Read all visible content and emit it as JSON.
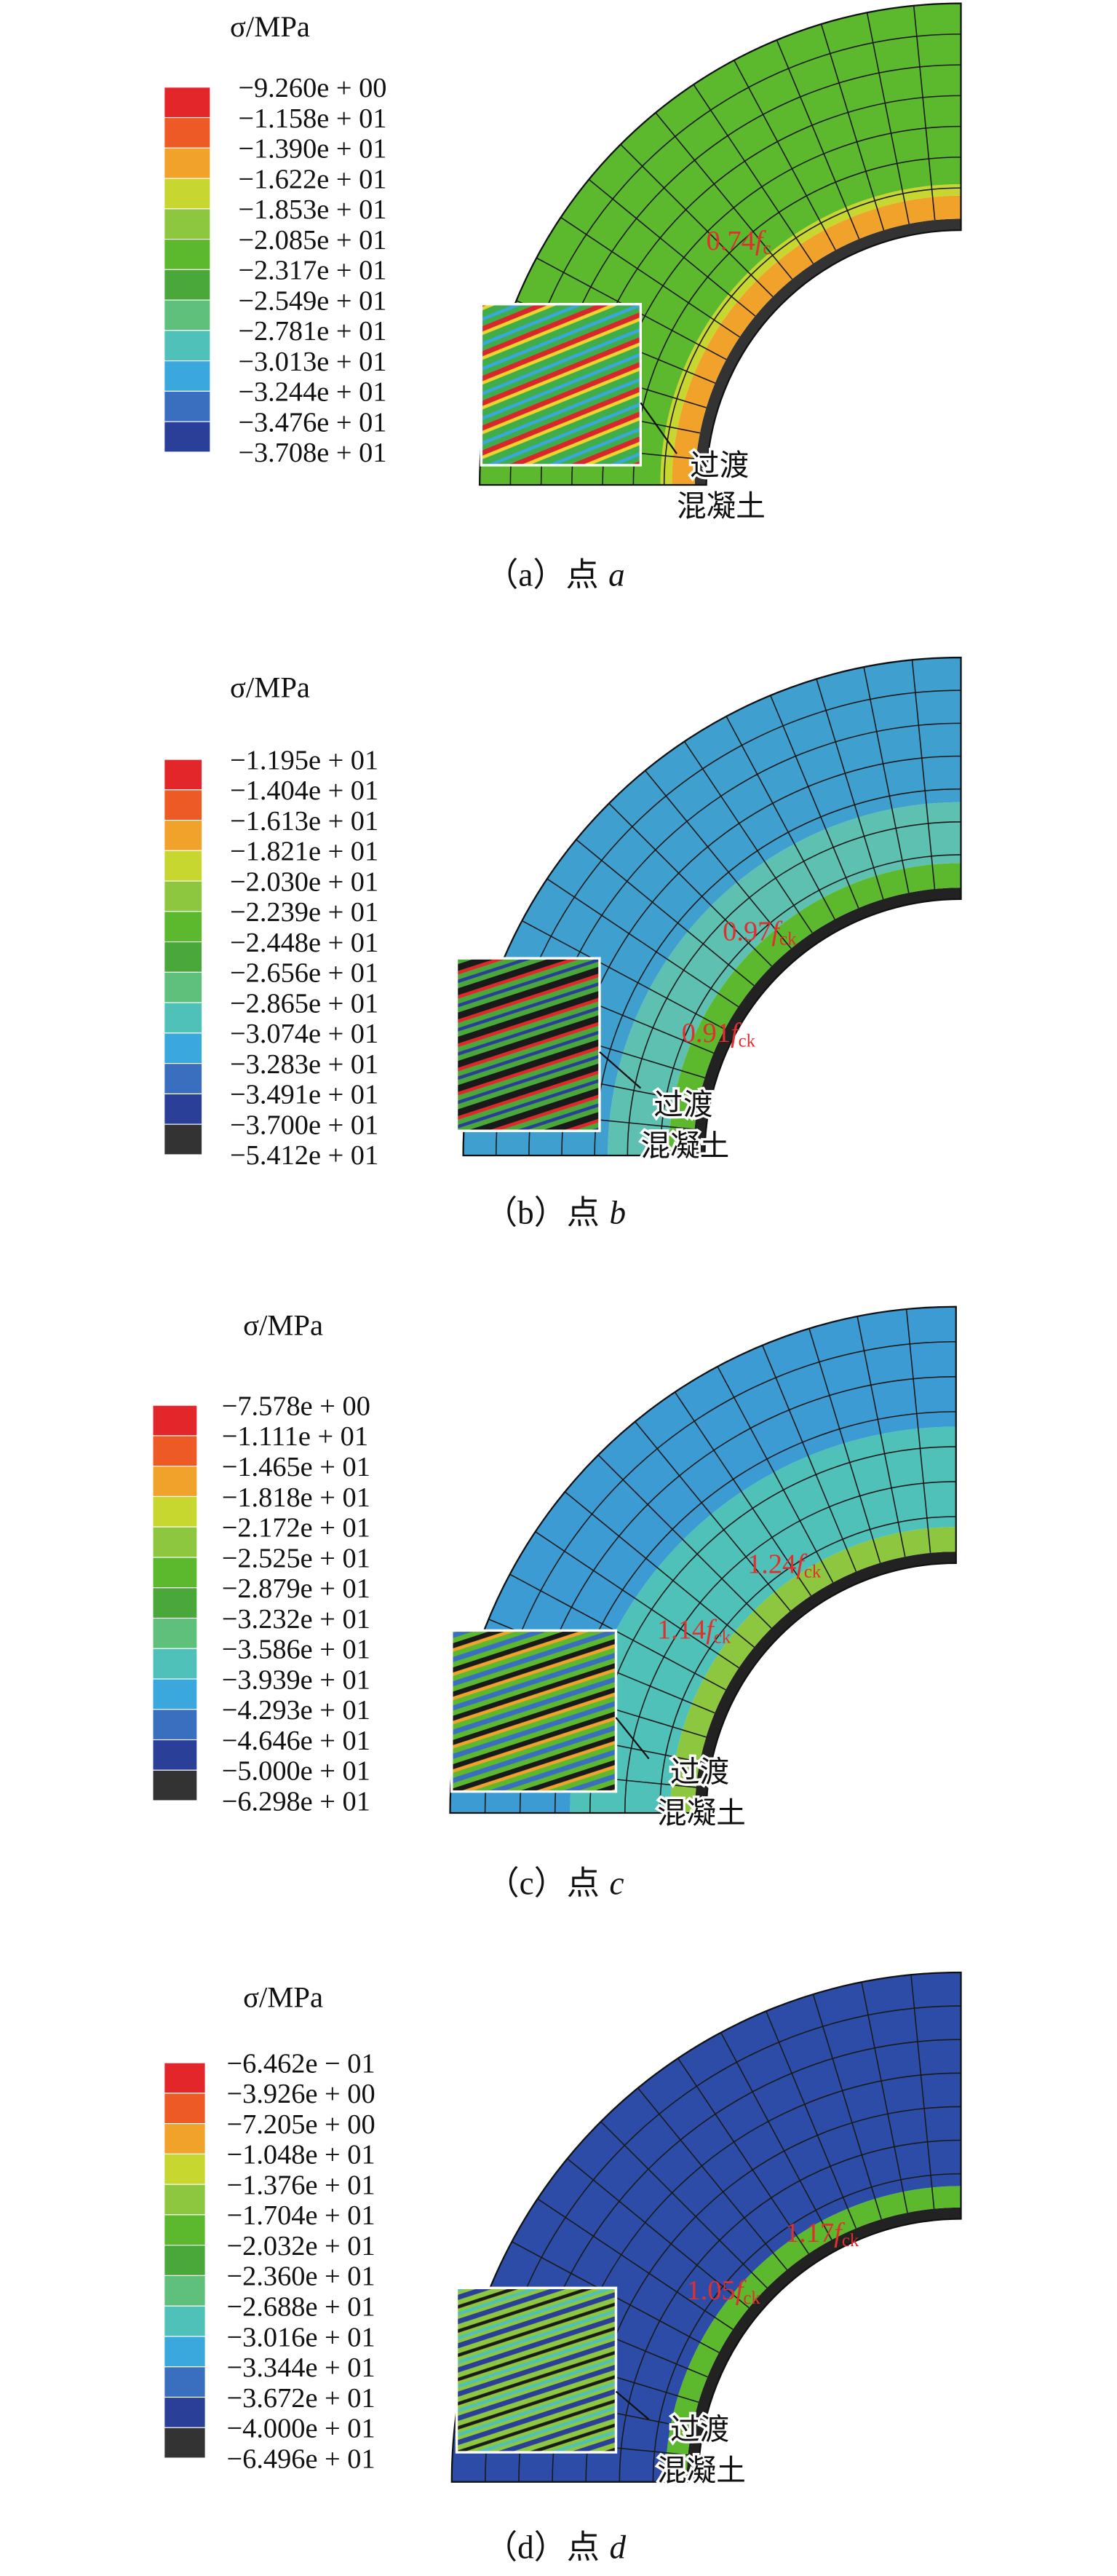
{
  "panels": [
    {
      "legend_title": "σ/MPa",
      "legend_labels": [
        "−9.260e + 00",
        "−1.158e + 01",
        "−1.390e + 01",
        "−1.622e + 01",
        "−1.853e + 01",
        "−2.085e + 01",
        "−2.317e + 01",
        "−2.549e + 01",
        "−2.781e + 01",
        "−3.013e + 01",
        "−3.244e + 01",
        "−3.476e + 01",
        "−3.708e + 01"
      ],
      "annotations": [
        {
          "value": "0.74",
          "symbol": "f",
          "subscript": "c"
        }
      ],
      "inset_label": [
        "过渡",
        "混凝土"
      ],
      "caption": {
        "label": "（a）点",
        "variable": "a"
      }
    },
    {
      "legend_title": "σ/MPa",
      "legend_labels": [
        "−1.195e + 01",
        "−1.404e + 01",
        "−1.613e + 01",
        "−1.821e + 01",
        "−2.030e + 01",
        "−2.239e + 01",
        "−2.448e + 01",
        "−2.656e + 01",
        "−2.865e + 01",
        "−3.074e + 01",
        "−3.283e + 01",
        "−3.491e + 01",
        "−3.700e + 01",
        "−5.412e + 01"
      ],
      "annotations": [
        {
          "value": "0.97",
          "symbol": "f",
          "subscript": "ck"
        },
        {
          "value": "0.91",
          "symbol": "f",
          "subscript": "ck"
        }
      ],
      "inset_label": [
        "过渡",
        "混凝土"
      ],
      "caption": {
        "label": "（b）点",
        "variable": "b"
      }
    },
    {
      "legend_title": "σ/MPa",
      "legend_labels": [
        "−7.578e + 00",
        "−1.111e + 01",
        "−1.465e + 01",
        "−1.818e + 01",
        "−2.172e + 01",
        "−2.525e + 01",
        "−2.879e + 01",
        "−3.232e + 01",
        "−3.586e + 01",
        "−3.939e + 01",
        "−4.293e + 01",
        "−4.646e + 01",
        "−5.000e + 01",
        "−6.298e + 01"
      ],
      "annotations": [
        {
          "value": "1.24",
          "symbol": "f",
          "subscript": "ck"
        },
        {
          "value": "1.14",
          "symbol": "f",
          "subscript": "ck"
        }
      ],
      "inset_label": [
        "过渡",
        "混凝土"
      ],
      "caption": {
        "label": "（c）点",
        "variable": "c"
      }
    },
    {
      "legend_title": "σ/MPa",
      "legend_labels": [
        "−6.462e − 01",
        "−3.926e + 00",
        "−7.205e + 00",
        "−1.048e + 01",
        "−1.376e + 01",
        "−1.704e + 01",
        "−2.032e + 01",
        "−2.360e + 01",
        "−2.688e + 01",
        "−3.016e + 01",
        "−3.344e + 01",
        "−3.672e + 01",
        "−4.000e + 01",
        "−6.496e + 01"
      ],
      "annotations": [
        {
          "value": "1.17",
          "symbol": "f",
          "subscript": "ck"
        },
        {
          "value": "1.05",
          "symbol": "f",
          "subscript": "ck"
        }
      ],
      "inset_label": [
        "过渡",
        "混凝土"
      ],
      "caption": {
        "label": "（d）点",
        "variable": "d"
      }
    }
  ]
}
